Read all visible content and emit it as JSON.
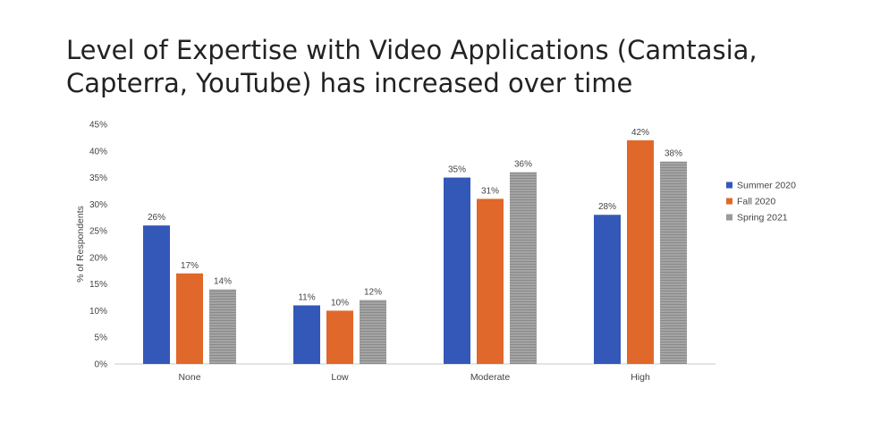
{
  "title": "Level of Expertise with Video Applications (Camtasia, Capterra, YouTube) has increased over time",
  "chart_data": {
    "type": "bar",
    "categories": [
      "None",
      "Low",
      "Moderate",
      "High"
    ],
    "series": [
      {
        "name": "Summer 2020",
        "color": "#3358b8",
        "values": [
          26,
          11,
          35,
          28
        ]
      },
      {
        "name": "Fall 2020",
        "color": "#e0682a",
        "values": [
          17,
          10,
          31,
          42
        ]
      },
      {
        "name": "Spring 2021",
        "color": "#9a9a9a",
        "values": [
          14,
          12,
          36,
          38
        ]
      }
    ],
    "ylabel": "% of Respondents",
    "ylim": [
      0,
      45
    ],
    "yticks": [
      "0%",
      "5%",
      "10%",
      "15%",
      "20%",
      "25%",
      "30%",
      "35%",
      "40%",
      "45%"
    ],
    "data_label_suffix": "%",
    "grid": false,
    "legend_position": "right"
  }
}
